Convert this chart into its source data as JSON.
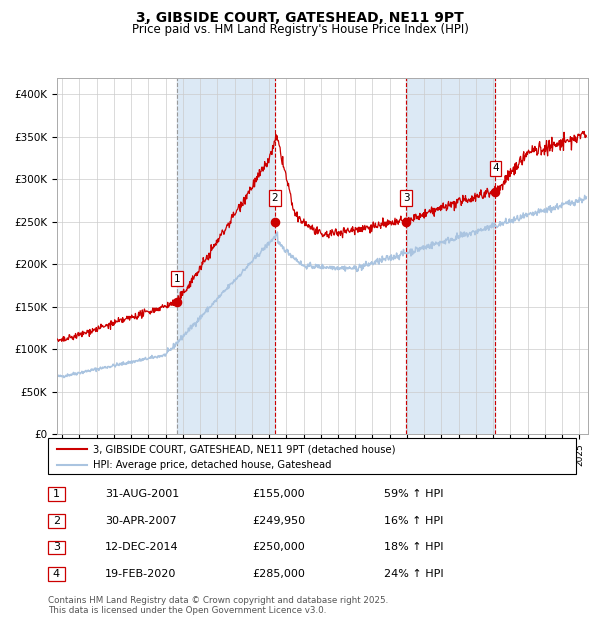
{
  "title": "3, GIBSIDE COURT, GATESHEAD, NE11 9PT",
  "subtitle": "Price paid vs. HM Land Registry's House Price Index (HPI)",
  "ylim": [
    0,
    420000
  ],
  "yticks": [
    0,
    50000,
    100000,
    150000,
    200000,
    250000,
    300000,
    350000,
    400000
  ],
  "ytick_labels": [
    "£0",
    "£50K",
    "£100K",
    "£150K",
    "£200K",
    "£250K",
    "£300K",
    "£350K",
    "£400K"
  ],
  "background_color": "#ffffff",
  "plot_bg_color": "#ffffff",
  "grid_color": "#cccccc",
  "hpi_line_color": "#aac4e0",
  "price_line_color": "#cc0000",
  "sale_marker_color": "#cc0000",
  "sales": [
    {
      "label": "1",
      "date_num": 2001.664,
      "price": 155000,
      "pct": "59%",
      "dir": "↑"
    },
    {
      "label": "2",
      "date_num": 2007.328,
      "price": 249950,
      "pct": "16%",
      "dir": "↑"
    },
    {
      "label": "3",
      "date_num": 2014.945,
      "price": 250000,
      "pct": "18%",
      "dir": "↑"
    },
    {
      "label": "4",
      "date_num": 2020.132,
      "price": 285000,
      "pct": "24%",
      "dir": "↑"
    }
  ],
  "sale_dates_formatted": [
    "31-AUG-2001",
    "30-APR-2007",
    "12-DEC-2014",
    "19-FEB-2020"
  ],
  "sale_prices_formatted": [
    "£155,000",
    "£249,950",
    "£250,000",
    "£285,000"
  ],
  "vspan_color": "#dce9f5",
  "vline_color_gray": "#999999",
  "vline_color_red": "#cc0000",
  "legend_price_label": "3, GIBSIDE COURT, GATESHEAD, NE11 9PT (detached house)",
  "legend_hpi_label": "HPI: Average price, detached house, Gateshead",
  "footnote": "Contains HM Land Registry data © Crown copyright and database right 2025.\nThis data is licensed under the Open Government Licence v3.0.",
  "xmin": 1994.7,
  "xmax": 2025.5
}
